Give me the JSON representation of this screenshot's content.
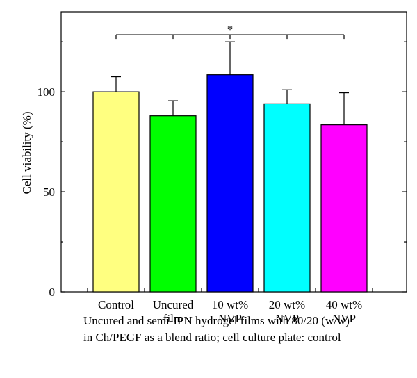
{
  "chart_data": {
    "type": "bar",
    "categories": [
      "Control",
      "Uncured film",
      "10 wt% NVP",
      "20 wt% NVP",
      "40 wt% NVP"
    ],
    "category_lines": [
      [
        "Control"
      ],
      [
        "Uncured",
        "film"
      ],
      [
        "10 wt%",
        "NVP"
      ],
      [
        "20 wt%",
        "NVP"
      ],
      [
        "40 wt%",
        "NVP"
      ]
    ],
    "values": [
      100,
      88,
      108.5,
      94,
      83.5
    ],
    "errors": [
      7.5,
      7.5,
      16.5,
      7,
      16
    ],
    "colors": [
      "#ffff80",
      "#00ff00",
      "#0000ff",
      "#00ffff",
      "#ff00ff"
    ],
    "ylabel": "Cell viability (%)",
    "xlabel": "Uncured and semi-IPN hydrogel films with 80/20 (w/w)\nin Ch/PEGF as a blend ratio; cell culture plate: control",
    "ylim": [
      0,
      140
    ],
    "yticks": [
      0,
      50,
      100
    ],
    "y_minor_step": 25,
    "significance": {
      "label": "*",
      "from": 0,
      "to": 4,
      "y": 128.5
    },
    "grid": false,
    "legend": "none"
  }
}
